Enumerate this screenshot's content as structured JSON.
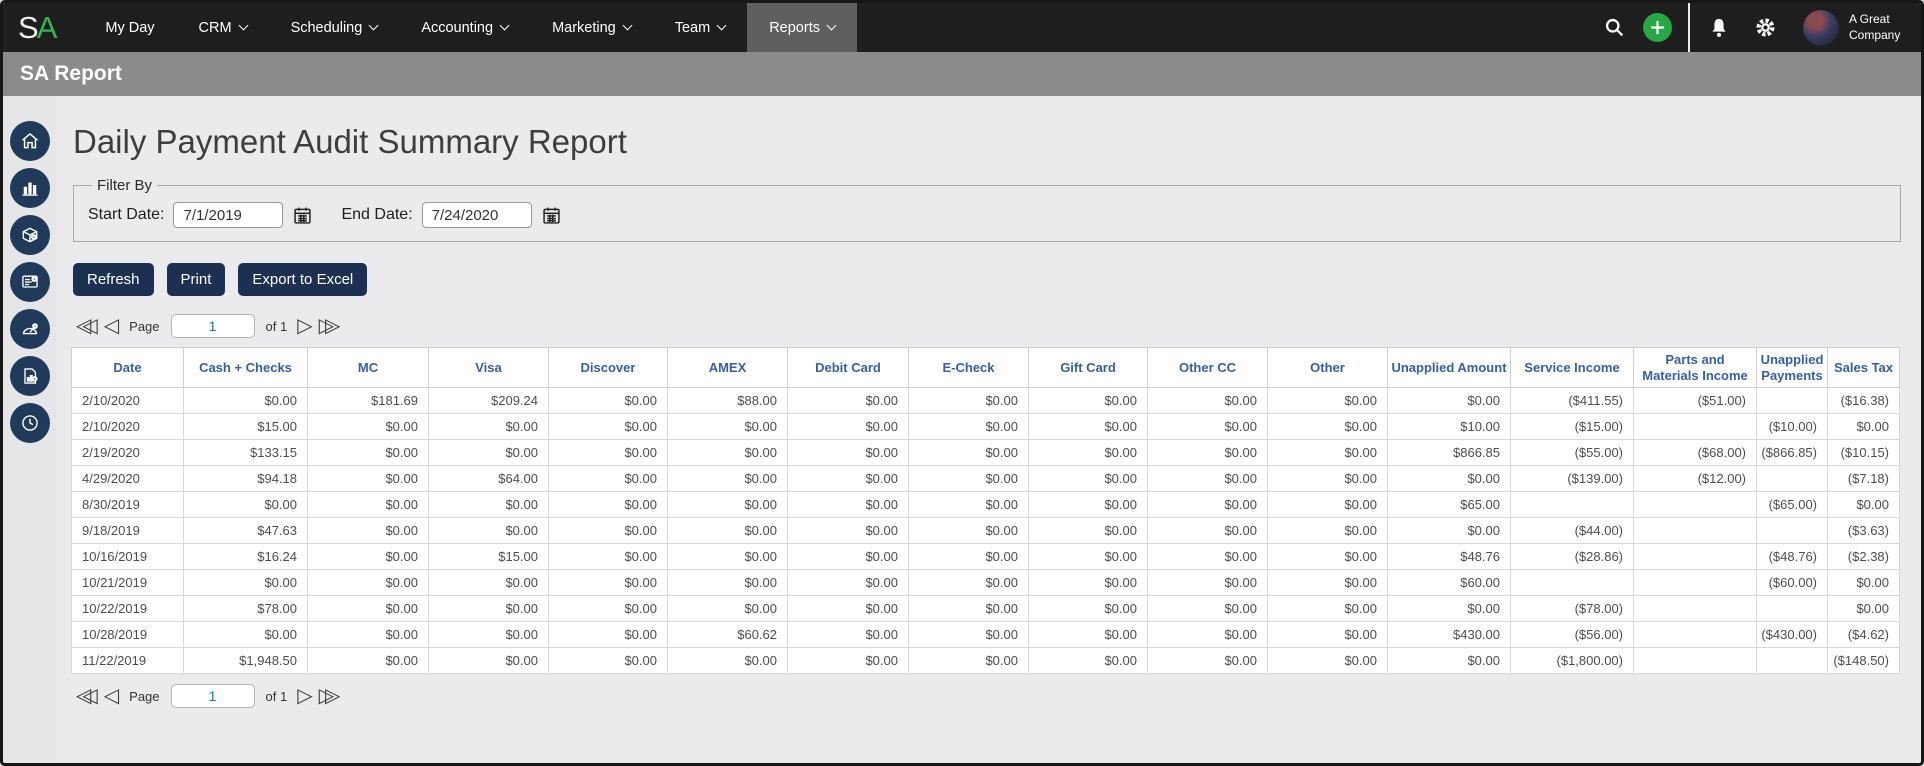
{
  "topnav": {
    "logo_s": "S",
    "logo_a": "A",
    "items": [
      {
        "label": "My Day",
        "dropdown": false,
        "active": false
      },
      {
        "label": "CRM",
        "dropdown": true,
        "active": false
      },
      {
        "label": "Scheduling",
        "dropdown": true,
        "active": false
      },
      {
        "label": "Accounting",
        "dropdown": true,
        "active": false
      },
      {
        "label": "Marketing",
        "dropdown": true,
        "active": false
      },
      {
        "label": "Team",
        "dropdown": true,
        "active": false
      },
      {
        "label": "Reports",
        "dropdown": true,
        "active": true
      }
    ],
    "icons": [
      "search-icon",
      "add-icon",
      "bell-icon",
      "gear-icon",
      "avatar"
    ],
    "company": "A Great Company"
  },
  "report_bar": {
    "title": "SA Report"
  },
  "sidebar": {
    "items": [
      "home-icon",
      "bar-chart-icon",
      "inventory-box-icon",
      "form-settings-icon",
      "gauge-icon",
      "report-document-icon",
      "clock-icon"
    ]
  },
  "page": {
    "title": "Daily Payment Audit Summary Report"
  },
  "filter": {
    "legend": "Filter By",
    "start_label": "Start Date:",
    "start_value": "7/1/2019",
    "end_label": "End Date:",
    "end_value": "7/24/2020"
  },
  "toolbar": {
    "refresh_label": "Refresh",
    "print_label": "Print",
    "export_label": "Export to Excel"
  },
  "pagination": {
    "page_label": "Page",
    "page_value": "1",
    "of_label": "of 1"
  },
  "table": {
    "columns": [
      "Date",
      "Cash + Checks",
      "MC",
      "Visa",
      "Discover",
      "AMEX",
      "Debit Card",
      "E-Check",
      "Gift Card",
      "Other CC",
      "Other",
      "Unapplied Amount",
      "Service Income",
      "Parts and Materials Income",
      "Unapplied Payments",
      "Sales Tax"
    ],
    "rows": [
      [
        "2/10/2020",
        "$0.00",
        "$181.69",
        "$209.24",
        "$0.00",
        "$88.00",
        "$0.00",
        "$0.00",
        "$0.00",
        "$0.00",
        "$0.00",
        "$0.00",
        "($411.55)",
        "($51.00)",
        "",
        "($16.38)"
      ],
      [
        "2/10/2020",
        "$15.00",
        "$0.00",
        "$0.00",
        "$0.00",
        "$0.00",
        "$0.00",
        "$0.00",
        "$0.00",
        "$0.00",
        "$0.00",
        "$10.00",
        "($15.00)",
        "",
        "($10.00)",
        "$0.00"
      ],
      [
        "2/19/2020",
        "$133.15",
        "$0.00",
        "$0.00",
        "$0.00",
        "$0.00",
        "$0.00",
        "$0.00",
        "$0.00",
        "$0.00",
        "$0.00",
        "$866.85",
        "($55.00)",
        "($68.00)",
        "($866.85)",
        "($10.15)"
      ],
      [
        "4/29/2020",
        "$94.18",
        "$0.00",
        "$64.00",
        "$0.00",
        "$0.00",
        "$0.00",
        "$0.00",
        "$0.00",
        "$0.00",
        "$0.00",
        "$0.00",
        "($139.00)",
        "($12.00)",
        "",
        "($7.18)"
      ],
      [
        "8/30/2019",
        "$0.00",
        "$0.00",
        "$0.00",
        "$0.00",
        "$0.00",
        "$0.00",
        "$0.00",
        "$0.00",
        "$0.00",
        "$0.00",
        "$65.00",
        "",
        "",
        "($65.00)",
        "$0.00"
      ],
      [
        "9/18/2019",
        "$47.63",
        "$0.00",
        "$0.00",
        "$0.00",
        "$0.00",
        "$0.00",
        "$0.00",
        "$0.00",
        "$0.00",
        "$0.00",
        "$0.00",
        "($44.00)",
        "",
        "",
        "($3.63)"
      ],
      [
        "10/16/2019",
        "$16.24",
        "$0.00",
        "$15.00",
        "$0.00",
        "$0.00",
        "$0.00",
        "$0.00",
        "$0.00",
        "$0.00",
        "$0.00",
        "$48.76",
        "($28.86)",
        "",
        "($48.76)",
        "($2.38)"
      ],
      [
        "10/21/2019",
        "$0.00",
        "$0.00",
        "$0.00",
        "$0.00",
        "$0.00",
        "$0.00",
        "$0.00",
        "$0.00",
        "$0.00",
        "$0.00",
        "$60.00",
        "",
        "",
        "($60.00)",
        "$0.00"
      ],
      [
        "10/22/2019",
        "$78.00",
        "$0.00",
        "$0.00",
        "$0.00",
        "$0.00",
        "$0.00",
        "$0.00",
        "$0.00",
        "$0.00",
        "$0.00",
        "$0.00",
        "($78.00)",
        "",
        "",
        "$0.00"
      ],
      [
        "10/28/2019",
        "$0.00",
        "$0.00",
        "$0.00",
        "$0.00",
        "$60.62",
        "$0.00",
        "$0.00",
        "$0.00",
        "$0.00",
        "$0.00",
        "$430.00",
        "($56.00)",
        "",
        "($430.00)",
        "($4.62)"
      ],
      [
        "11/22/2019",
        "$1,948.50",
        "$0.00",
        "$0.00",
        "$0.00",
        "$0.00",
        "$0.00",
        "$0.00",
        "$0.00",
        "$0.00",
        "$0.00",
        "$0.00",
        "($1,800.00)",
        "",
        "",
        "($148.50)"
      ]
    ]
  },
  "colors": {
    "nav_bg": "#1e1e1e",
    "nav_active_bg": "#5f5f5f",
    "logo_green": "#35b558",
    "add_button_green": "#28a745",
    "report_bar_bg": "#8b8b8b",
    "sidebar_circle": "#203b59",
    "button_bg": "#1c3151",
    "header_text_blue": "#3560a8",
    "page_value_teal": "#12807f"
  }
}
